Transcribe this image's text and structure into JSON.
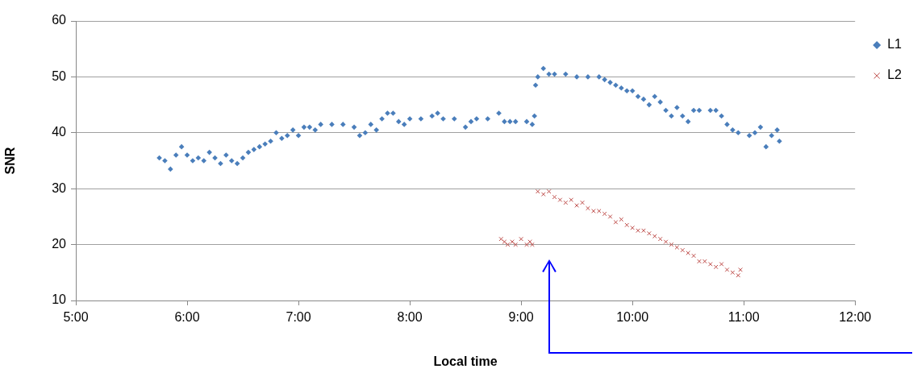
{
  "chart_data": {
    "type": "scatter",
    "xlabel": "Local time",
    "ylabel": "SNR",
    "xlim": [
      5,
      12
    ],
    "xticks": [
      {
        "value": 5,
        "label": "5:00"
      },
      {
        "value": 6,
        "label": "6:00"
      },
      {
        "value": 7,
        "label": "7:00"
      },
      {
        "value": 8,
        "label": "8:00"
      },
      {
        "value": 9,
        "label": "9:00"
      },
      {
        "value": 10,
        "label": "10:00"
      },
      {
        "value": 11,
        "label": "11:00"
      },
      {
        "value": 12,
        "label": "12:00"
      }
    ],
    "ylim": [
      10,
      60
    ],
    "yticks": [
      10,
      20,
      30,
      40,
      50,
      60
    ],
    "grid": "y",
    "legend": "right",
    "series": [
      {
        "name": "L1",
        "color": "#4a7ebb",
        "marker": "diamond",
        "x": [
          5.75,
          5.8,
          5.85,
          5.9,
          5.95,
          6.0,
          6.05,
          6.1,
          6.15,
          6.2,
          6.25,
          6.3,
          6.35,
          6.4,
          6.45,
          6.5,
          6.55,
          6.6,
          6.65,
          6.7,
          6.75,
          6.8,
          6.85,
          6.9,
          6.95,
          7.0,
          7.05,
          7.1,
          7.15,
          7.2,
          7.3,
          7.4,
          7.5,
          7.55,
          7.6,
          7.65,
          7.7,
          7.75,
          7.8,
          7.85,
          7.9,
          7.95,
          8.0,
          8.1,
          8.2,
          8.25,
          8.3,
          8.4,
          8.5,
          8.55,
          8.6,
          8.7,
          8.8,
          8.85,
          8.9,
          8.95,
          9.05,
          9.1,
          9.12,
          9.13,
          9.15,
          9.2,
          9.25,
          9.3,
          9.4,
          9.5,
          9.6,
          9.7,
          9.75,
          9.8,
          9.85,
          9.9,
          9.95,
          10.0,
          10.05,
          10.1,
          10.15,
          10.2,
          10.25,
          10.3,
          10.35,
          10.4,
          10.45,
          10.5,
          10.55,
          10.6,
          10.7,
          10.75,
          10.8,
          10.85,
          10.9,
          10.95,
          11.05,
          11.1,
          11.15,
          11.2,
          11.25,
          11.3,
          11.32
        ],
        "values": [
          35.5,
          35,
          33.5,
          36,
          37.5,
          36,
          35,
          35.5,
          35,
          36.5,
          35.5,
          34.5,
          36,
          35,
          34.5,
          35.5,
          36.5,
          37,
          37.5,
          38,
          38.5,
          40,
          39,
          39.5,
          40.5,
          39.5,
          41,
          41,
          40.5,
          41.5,
          41.5,
          41.5,
          41,
          39.5,
          40,
          41.5,
          40.5,
          42.5,
          43.5,
          43.5,
          42,
          41.5,
          42.5,
          42.5,
          43,
          43.5,
          42.5,
          42.5,
          41,
          42,
          42.5,
          42.5,
          43.5,
          42,
          42,
          42,
          42,
          41.5,
          43,
          48.5,
          50,
          51.5,
          50.5,
          50.5,
          50.5,
          50,
          50,
          50,
          49.5,
          49,
          48.5,
          48,
          47.5,
          47.5,
          46.5,
          46,
          45,
          46.5,
          45.5,
          44,
          43,
          44.5,
          43,
          42,
          44,
          44,
          44,
          44,
          43,
          41.5,
          40.5,
          40,
          39.5,
          40,
          41,
          37.5,
          39.5,
          40.5,
          38.5
        ]
      },
      {
        "name": "L2",
        "color": "#be4b48",
        "marker": "cross",
        "x": [
          8.82,
          8.85,
          8.88,
          8.92,
          8.95,
          9.0,
          9.05,
          9.08,
          9.1,
          9.15,
          9.2,
          9.25,
          9.3,
          9.35,
          9.4,
          9.45,
          9.5,
          9.55,
          9.6,
          9.65,
          9.7,
          9.75,
          9.8,
          9.85,
          9.9,
          9.95,
          10.0,
          10.05,
          10.1,
          10.15,
          10.2,
          10.25,
          10.3,
          10.35,
          10.4,
          10.45,
          10.5,
          10.55,
          10.6,
          10.65,
          10.7,
          10.75,
          10.8,
          10.85,
          10.9,
          10.95,
          10.97
        ],
        "values": [
          21,
          20.5,
          20,
          20.5,
          20,
          21,
          20,
          20.5,
          20,
          29.5,
          29,
          29.5,
          28.5,
          28,
          27.5,
          28,
          27,
          27.5,
          26.5,
          26,
          26,
          25.5,
          25,
          24,
          24.5,
          23.5,
          23,
          22.5,
          22.5,
          22,
          21.5,
          21,
          20.5,
          20,
          19.5,
          19,
          18.5,
          18,
          17,
          17,
          16.5,
          16,
          16.5,
          15.5,
          15,
          14.5,
          15.5
        ]
      }
    ]
  }
}
